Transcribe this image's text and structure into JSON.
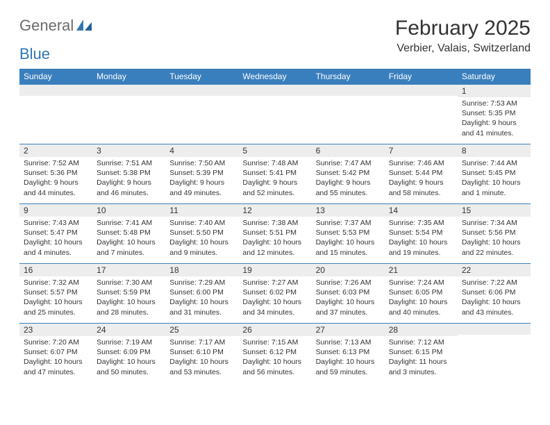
{
  "brand": {
    "part1": "General",
    "part2": "Blue"
  },
  "title": "February 2025",
  "location": "Verbier, Valais, Switzerland",
  "colors": {
    "header_bg": "#3a7fbd",
    "header_text": "#ffffff",
    "daynum_bg": "#ededed",
    "border": "#3a7fbd",
    "body_text": "#333333",
    "logo_gray": "#6b6b6b",
    "logo_blue": "#2f77b8",
    "page_bg": "#ffffff"
  },
  "typography": {
    "title_fontsize": 30,
    "location_fontsize": 16,
    "header_fontsize": 12,
    "daynum_fontsize": 12,
    "body_fontsize": 10.5
  },
  "dayHeaders": [
    "Sunday",
    "Monday",
    "Tuesday",
    "Wednesday",
    "Thursday",
    "Friday",
    "Saturday"
  ],
  "weeks": [
    [
      {
        "n": "",
        "sunrise": "",
        "sunset": "",
        "daylight": ""
      },
      {
        "n": "",
        "sunrise": "",
        "sunset": "",
        "daylight": ""
      },
      {
        "n": "",
        "sunrise": "",
        "sunset": "",
        "daylight": ""
      },
      {
        "n": "",
        "sunrise": "",
        "sunset": "",
        "daylight": ""
      },
      {
        "n": "",
        "sunrise": "",
        "sunset": "",
        "daylight": ""
      },
      {
        "n": "",
        "sunrise": "",
        "sunset": "",
        "daylight": ""
      },
      {
        "n": "1",
        "sunrise": "Sunrise: 7:53 AM",
        "sunset": "Sunset: 5:35 PM",
        "daylight": "Daylight: 9 hours and 41 minutes."
      }
    ],
    [
      {
        "n": "2",
        "sunrise": "Sunrise: 7:52 AM",
        "sunset": "Sunset: 5:36 PM",
        "daylight": "Daylight: 9 hours and 44 minutes."
      },
      {
        "n": "3",
        "sunrise": "Sunrise: 7:51 AM",
        "sunset": "Sunset: 5:38 PM",
        "daylight": "Daylight: 9 hours and 46 minutes."
      },
      {
        "n": "4",
        "sunrise": "Sunrise: 7:50 AM",
        "sunset": "Sunset: 5:39 PM",
        "daylight": "Daylight: 9 hours and 49 minutes."
      },
      {
        "n": "5",
        "sunrise": "Sunrise: 7:48 AM",
        "sunset": "Sunset: 5:41 PM",
        "daylight": "Daylight: 9 hours and 52 minutes."
      },
      {
        "n": "6",
        "sunrise": "Sunrise: 7:47 AM",
        "sunset": "Sunset: 5:42 PM",
        "daylight": "Daylight: 9 hours and 55 minutes."
      },
      {
        "n": "7",
        "sunrise": "Sunrise: 7:46 AM",
        "sunset": "Sunset: 5:44 PM",
        "daylight": "Daylight: 9 hours and 58 minutes."
      },
      {
        "n": "8",
        "sunrise": "Sunrise: 7:44 AM",
        "sunset": "Sunset: 5:45 PM",
        "daylight": "Daylight: 10 hours and 1 minute."
      }
    ],
    [
      {
        "n": "9",
        "sunrise": "Sunrise: 7:43 AM",
        "sunset": "Sunset: 5:47 PM",
        "daylight": "Daylight: 10 hours and 4 minutes."
      },
      {
        "n": "10",
        "sunrise": "Sunrise: 7:41 AM",
        "sunset": "Sunset: 5:48 PM",
        "daylight": "Daylight: 10 hours and 7 minutes."
      },
      {
        "n": "11",
        "sunrise": "Sunrise: 7:40 AM",
        "sunset": "Sunset: 5:50 PM",
        "daylight": "Daylight: 10 hours and 9 minutes."
      },
      {
        "n": "12",
        "sunrise": "Sunrise: 7:38 AM",
        "sunset": "Sunset: 5:51 PM",
        "daylight": "Daylight: 10 hours and 12 minutes."
      },
      {
        "n": "13",
        "sunrise": "Sunrise: 7:37 AM",
        "sunset": "Sunset: 5:53 PM",
        "daylight": "Daylight: 10 hours and 15 minutes."
      },
      {
        "n": "14",
        "sunrise": "Sunrise: 7:35 AM",
        "sunset": "Sunset: 5:54 PM",
        "daylight": "Daylight: 10 hours and 19 minutes."
      },
      {
        "n": "15",
        "sunrise": "Sunrise: 7:34 AM",
        "sunset": "Sunset: 5:56 PM",
        "daylight": "Daylight: 10 hours and 22 minutes."
      }
    ],
    [
      {
        "n": "16",
        "sunrise": "Sunrise: 7:32 AM",
        "sunset": "Sunset: 5:57 PM",
        "daylight": "Daylight: 10 hours and 25 minutes."
      },
      {
        "n": "17",
        "sunrise": "Sunrise: 7:30 AM",
        "sunset": "Sunset: 5:59 PM",
        "daylight": "Daylight: 10 hours and 28 minutes."
      },
      {
        "n": "18",
        "sunrise": "Sunrise: 7:29 AM",
        "sunset": "Sunset: 6:00 PM",
        "daylight": "Daylight: 10 hours and 31 minutes."
      },
      {
        "n": "19",
        "sunrise": "Sunrise: 7:27 AM",
        "sunset": "Sunset: 6:02 PM",
        "daylight": "Daylight: 10 hours and 34 minutes."
      },
      {
        "n": "20",
        "sunrise": "Sunrise: 7:26 AM",
        "sunset": "Sunset: 6:03 PM",
        "daylight": "Daylight: 10 hours and 37 minutes."
      },
      {
        "n": "21",
        "sunrise": "Sunrise: 7:24 AM",
        "sunset": "Sunset: 6:05 PM",
        "daylight": "Daylight: 10 hours and 40 minutes."
      },
      {
        "n": "22",
        "sunrise": "Sunrise: 7:22 AM",
        "sunset": "Sunset: 6:06 PM",
        "daylight": "Daylight: 10 hours and 43 minutes."
      }
    ],
    [
      {
        "n": "23",
        "sunrise": "Sunrise: 7:20 AM",
        "sunset": "Sunset: 6:07 PM",
        "daylight": "Daylight: 10 hours and 47 minutes."
      },
      {
        "n": "24",
        "sunrise": "Sunrise: 7:19 AM",
        "sunset": "Sunset: 6:09 PM",
        "daylight": "Daylight: 10 hours and 50 minutes."
      },
      {
        "n": "25",
        "sunrise": "Sunrise: 7:17 AM",
        "sunset": "Sunset: 6:10 PM",
        "daylight": "Daylight: 10 hours and 53 minutes."
      },
      {
        "n": "26",
        "sunrise": "Sunrise: 7:15 AM",
        "sunset": "Sunset: 6:12 PM",
        "daylight": "Daylight: 10 hours and 56 minutes."
      },
      {
        "n": "27",
        "sunrise": "Sunrise: 7:13 AM",
        "sunset": "Sunset: 6:13 PM",
        "daylight": "Daylight: 10 hours and 59 minutes."
      },
      {
        "n": "28",
        "sunrise": "Sunrise: 7:12 AM",
        "sunset": "Sunset: 6:15 PM",
        "daylight": "Daylight: 11 hours and 3 minutes."
      },
      {
        "n": "",
        "sunrise": "",
        "sunset": "",
        "daylight": ""
      }
    ]
  ]
}
